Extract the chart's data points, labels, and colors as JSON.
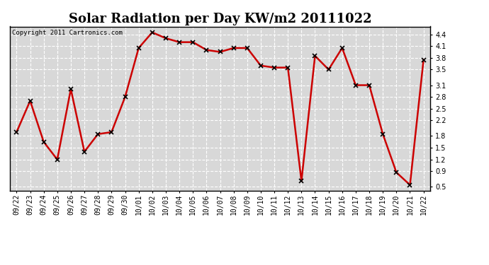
{
  "title": "Solar Radiation per Day KW/m2 20111022",
  "copyright": "Copyright 2011 Cartronics.com",
  "labels": [
    "09/22",
    "09/23",
    "09/24",
    "09/25",
    "09/26",
    "09/27",
    "09/28",
    "09/29",
    "09/30",
    "10/01",
    "10/02",
    "10/03",
    "10/04",
    "10/05",
    "10/06",
    "10/07",
    "10/08",
    "10/09",
    "10/10",
    "10/11",
    "10/12",
    "10/13",
    "10/14",
    "10/15",
    "10/16",
    "10/17",
    "10/18",
    "10/19",
    "10/20",
    "10/21",
    "10/22"
  ],
  "values": [
    1.9,
    2.7,
    1.65,
    1.2,
    3.0,
    1.4,
    1.85,
    1.9,
    2.8,
    4.05,
    4.45,
    4.3,
    4.2,
    4.2,
    4.0,
    3.95,
    4.05,
    4.05,
    3.6,
    3.55,
    3.55,
    0.65,
    3.85,
    3.5,
    4.05,
    3.1,
    3.1,
    1.85,
    0.87,
    0.55,
    3.75
  ],
  "ylim": [
    0.4,
    4.6
  ],
  "yticks": [
    0.5,
    0.9,
    1.2,
    1.5,
    1.8,
    2.2,
    2.5,
    2.8,
    3.1,
    3.5,
    3.8,
    4.1,
    4.4
  ],
  "line_color": "#cc0000",
  "marker_color": "#000000",
  "bg_color": "#ffffff",
  "plot_bg_color": "#d8d8d8",
  "grid_color": "#ffffff",
  "title_fontsize": 13,
  "tick_fontsize": 7,
  "copyright_fontsize": 6.5
}
